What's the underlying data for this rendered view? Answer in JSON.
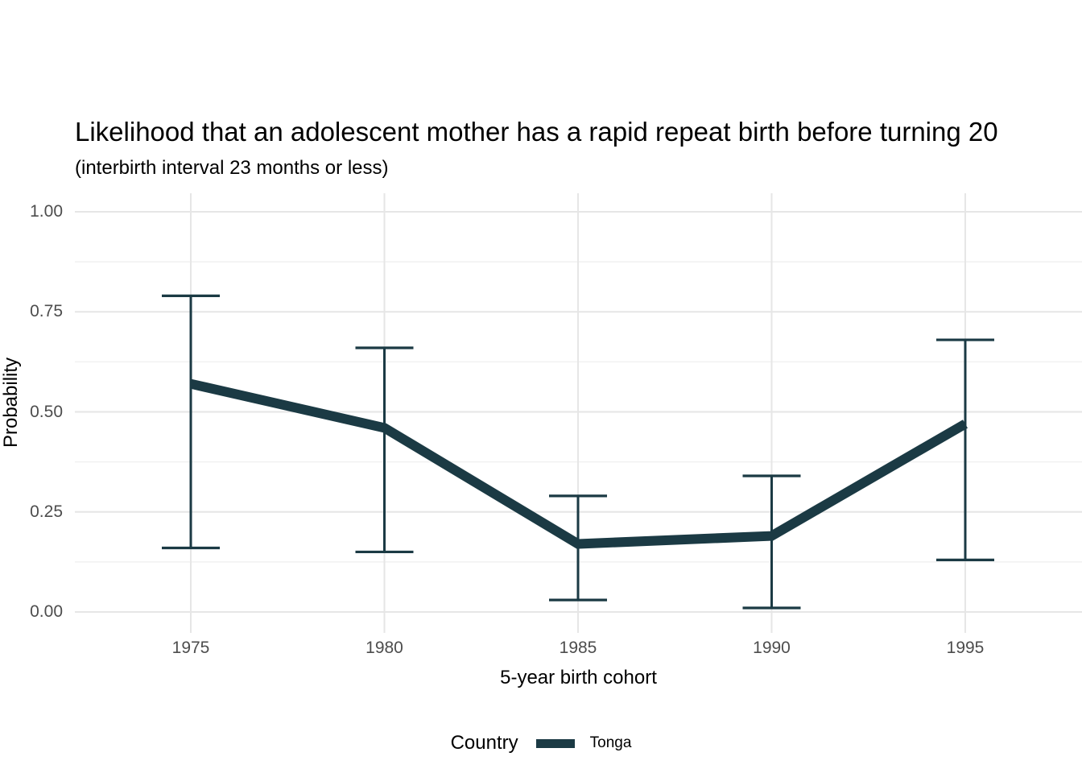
{
  "chart_data": {
    "type": "line",
    "title": "Likelihood that an adolescent mother has a rapid repeat birth before turning 20",
    "subtitle": "(interbirth interval 23 months or less)",
    "xlabel": "5-year birth cohort",
    "ylabel": "Probability",
    "x": [
      1975,
      1980,
      1985,
      1990,
      1995
    ],
    "xtick_labels": [
      "1975",
      "1980",
      "1985",
      "1990",
      "1995"
    ],
    "yticks": [
      0,
      0.25,
      0.5,
      0.75,
      1
    ],
    "ytick_labels": [
      "0.00",
      "0.25",
      "0.50",
      "0.75",
      "1.00"
    ],
    "yticks_minor": [
      0.125,
      0.375,
      0.625,
      0.875
    ],
    "ylim": [
      0,
      1
    ],
    "grid": {
      "horizontal_major": true,
      "horizontal_minor": true,
      "vertical_major": true,
      "vertical_minor": false
    },
    "legend": {
      "title": "Country",
      "position": "bottom",
      "entries": [
        "Tonga"
      ]
    },
    "series": [
      {
        "name": "Tonga",
        "color": "#1b3a44",
        "values": [
          0.57,
          0.46,
          0.17,
          0.19,
          0.47
        ],
        "ci_lower": [
          0.16,
          0.15,
          0.03,
          0.01,
          0.13
        ],
        "ci_upper": [
          0.79,
          0.66,
          0.29,
          0.34,
          0.68
        ]
      }
    ]
  },
  "colors": {
    "line": "#1b3a44",
    "grid_major": "#e6e6e6",
    "grid_minor": "#f1f1f1",
    "tick_label": "#4d4d4d",
    "text": "#000000",
    "background": "#ffffff"
  }
}
